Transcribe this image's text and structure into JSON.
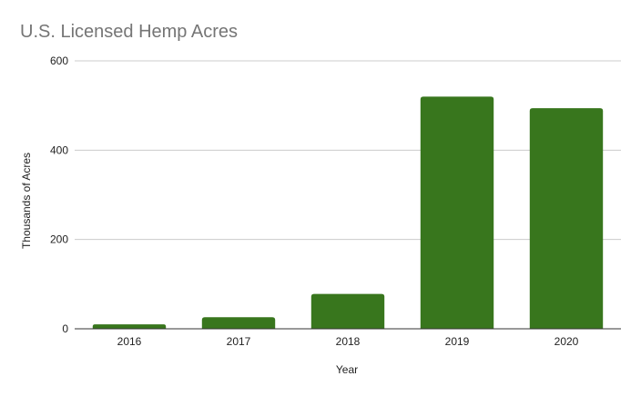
{
  "chart_data": {
    "type": "bar",
    "title": "U.S. Licensed Hemp Acres",
    "xlabel": "Year",
    "ylabel": "Thousands of Acres",
    "categories": [
      "2016",
      "2017",
      "2018",
      "2019",
      "2020"
    ],
    "values": [
      10,
      26,
      78,
      520,
      494
    ],
    "ylim": [
      0,
      600
    ],
    "yticks": [
      "0",
      "200",
      "400",
      "600"
    ],
    "grid": true,
    "legend": "none",
    "bar_color": "#38761d"
  }
}
